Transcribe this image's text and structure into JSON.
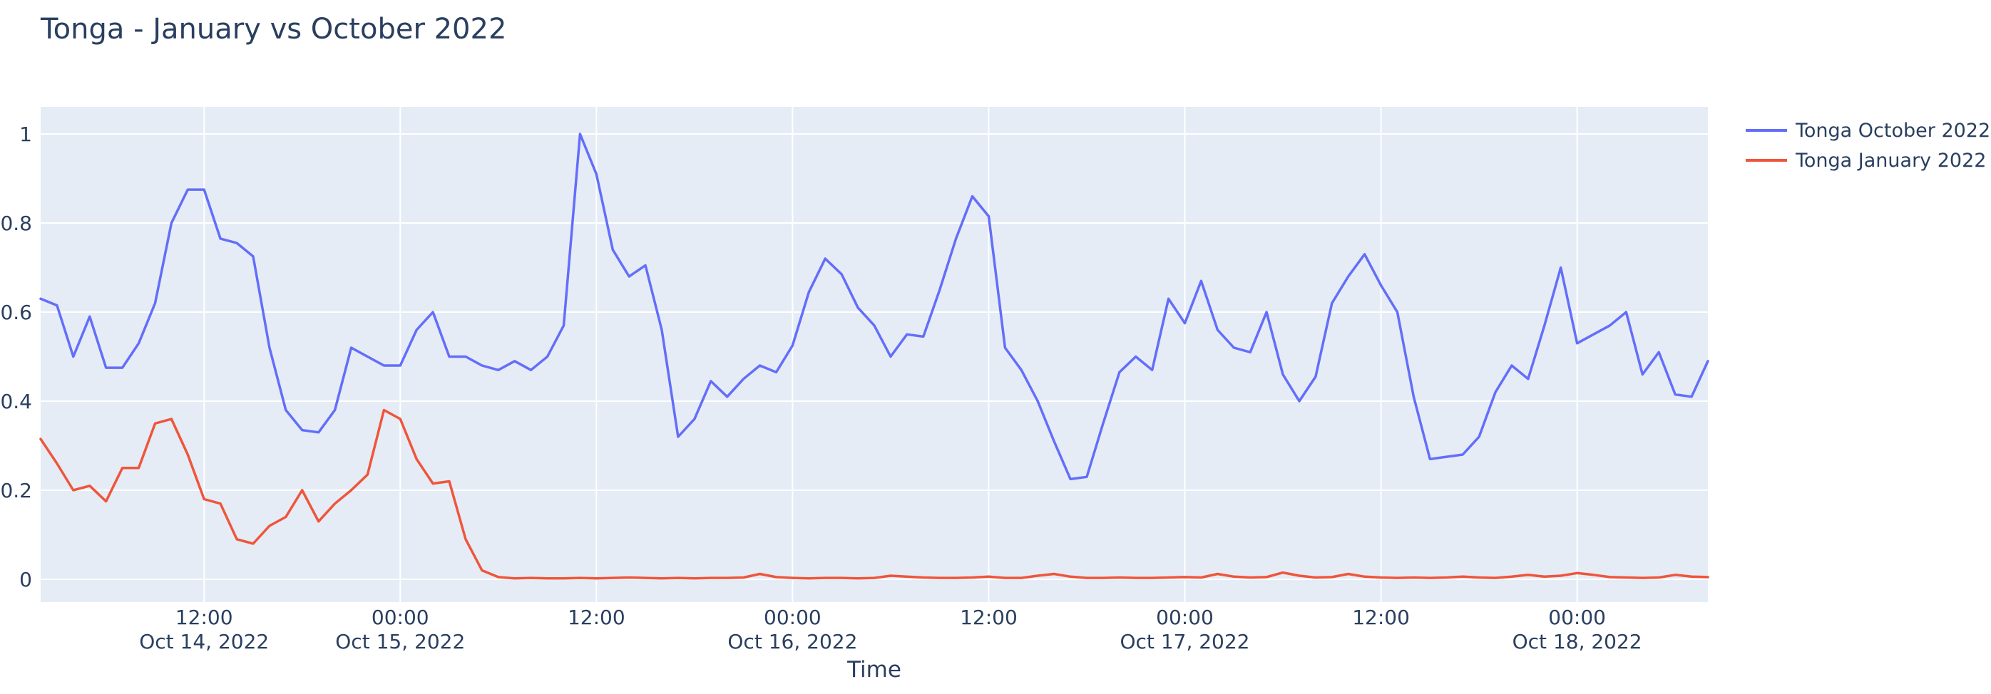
{
  "chart": {
    "title": "Tonga - January vs October 2022"
  },
  "chart_data": {
    "type": "line",
    "title": "Tonga - January vs October 2022",
    "xlabel": "Time",
    "ylabel": "",
    "x": {
      "start": "2022-10-14 02:00",
      "end": "2022-10-18 08:00",
      "step_hours": 1,
      "count": 103
    },
    "ylim": [
      -0.05,
      1.06
    ],
    "grid": true,
    "plot_bg": "#e5ecf6",
    "grid_color": "#ffffff",
    "text_color": "#2a3f5f",
    "legend_position": "top-right-outside",
    "yticks": [
      {
        "value": 0,
        "label": "0"
      },
      {
        "value": 0.2,
        "label": "0.2"
      },
      {
        "value": 0.4,
        "label": "0.4"
      },
      {
        "value": 0.6,
        "label": "0.6"
      },
      {
        "value": 0.8,
        "label": "0.8"
      },
      {
        "value": 1,
        "label": "1"
      }
    ],
    "xticks": [
      {
        "index": 10,
        "time": "12:00",
        "date": "Oct 14, 2022"
      },
      {
        "index": 22,
        "time": "00:00",
        "date": "Oct 15, 2022"
      },
      {
        "index": 34,
        "time": "12:00",
        "date": ""
      },
      {
        "index": 46,
        "time": "00:00",
        "date": "Oct 16, 2022"
      },
      {
        "index": 58,
        "time": "12:00",
        "date": ""
      },
      {
        "index": 70,
        "time": "00:00",
        "date": "Oct 17, 2022"
      },
      {
        "index": 82,
        "time": "12:00",
        "date": ""
      },
      {
        "index": 94,
        "time": "00:00",
        "date": "Oct 18, 2022"
      }
    ],
    "series": [
      {
        "name": "Tonga October 2022",
        "color": "#636efa",
        "values": [
          0.63,
          0.615,
          0.5,
          0.59,
          0.475,
          0.475,
          0.53,
          0.62,
          0.8,
          0.875,
          0.875,
          0.765,
          0.755,
          0.725,
          0.52,
          0.38,
          0.335,
          0.33,
          0.38,
          0.52,
          0.5,
          0.48,
          0.48,
          0.56,
          0.6,
          0.5,
          0.5,
          0.48,
          0.47,
          0.49,
          0.47,
          0.5,
          0.57,
          1.0,
          0.91,
          0.74,
          0.68,
          0.705,
          0.56,
          0.32,
          0.36,
          0.445,
          0.41,
          0.45,
          0.48,
          0.465,
          0.525,
          0.645,
          0.72,
          0.685,
          0.61,
          0.57,
          0.5,
          0.55,
          0.545,
          0.65,
          0.765,
          0.86,
          0.815,
          0.52,
          0.47,
          0.4,
          0.31,
          0.225,
          0.23,
          0.35,
          0.465,
          0.5,
          0.47,
          0.63,
          0.575,
          0.67,
          0.56,
          0.52,
          0.51,
          0.6,
          0.46,
          0.4,
          0.455,
          0.62,
          0.68,
          0.73,
          0.66,
          0.6,
          0.41,
          0.27,
          0.275,
          0.28,
          0.32,
          0.42,
          0.48,
          0.45,
          0.57,
          0.7,
          0.53,
          0.55,
          0.57,
          0.6,
          0.46,
          0.51,
          0.415,
          0.41,
          0.49
        ]
      },
      {
        "name": "Tonga January 2022",
        "color": "#ef553b",
        "values": [
          0.315,
          0.26,
          0.2,
          0.21,
          0.175,
          0.25,
          0.25,
          0.35,
          0.36,
          0.28,
          0.18,
          0.17,
          0.09,
          0.08,
          0.12,
          0.14,
          0.2,
          0.13,
          0.17,
          0.2,
          0.235,
          0.38,
          0.36,
          0.27,
          0.215,
          0.22,
          0.09,
          0.02,
          0.005,
          0.002,
          0.003,
          0.002,
          0.002,
          0.003,
          0.002,
          0.003,
          0.004,
          0.003,
          0.002,
          0.003,
          0.002,
          0.003,
          0.003,
          0.004,
          0.012,
          0.005,
          0.003,
          0.002,
          0.003,
          0.003,
          0.002,
          0.003,
          0.008,
          0.006,
          0.004,
          0.003,
          0.003,
          0.004,
          0.006,
          0.003,
          0.003,
          0.008,
          0.012,
          0.006,
          0.003,
          0.003,
          0.004,
          0.003,
          0.003,
          0.004,
          0.005,
          0.004,
          0.012,
          0.006,
          0.004,
          0.005,
          0.015,
          0.008,
          0.004,
          0.005,
          0.012,
          0.006,
          0.004,
          0.003,
          0.004,
          0.003,
          0.004,
          0.006,
          0.004,
          0.003,
          0.006,
          0.01,
          0.006,
          0.008,
          0.014,
          0.01,
          0.005,
          0.004,
          0.003,
          0.004,
          0.01,
          0.006,
          0.005
        ]
      }
    ]
  }
}
